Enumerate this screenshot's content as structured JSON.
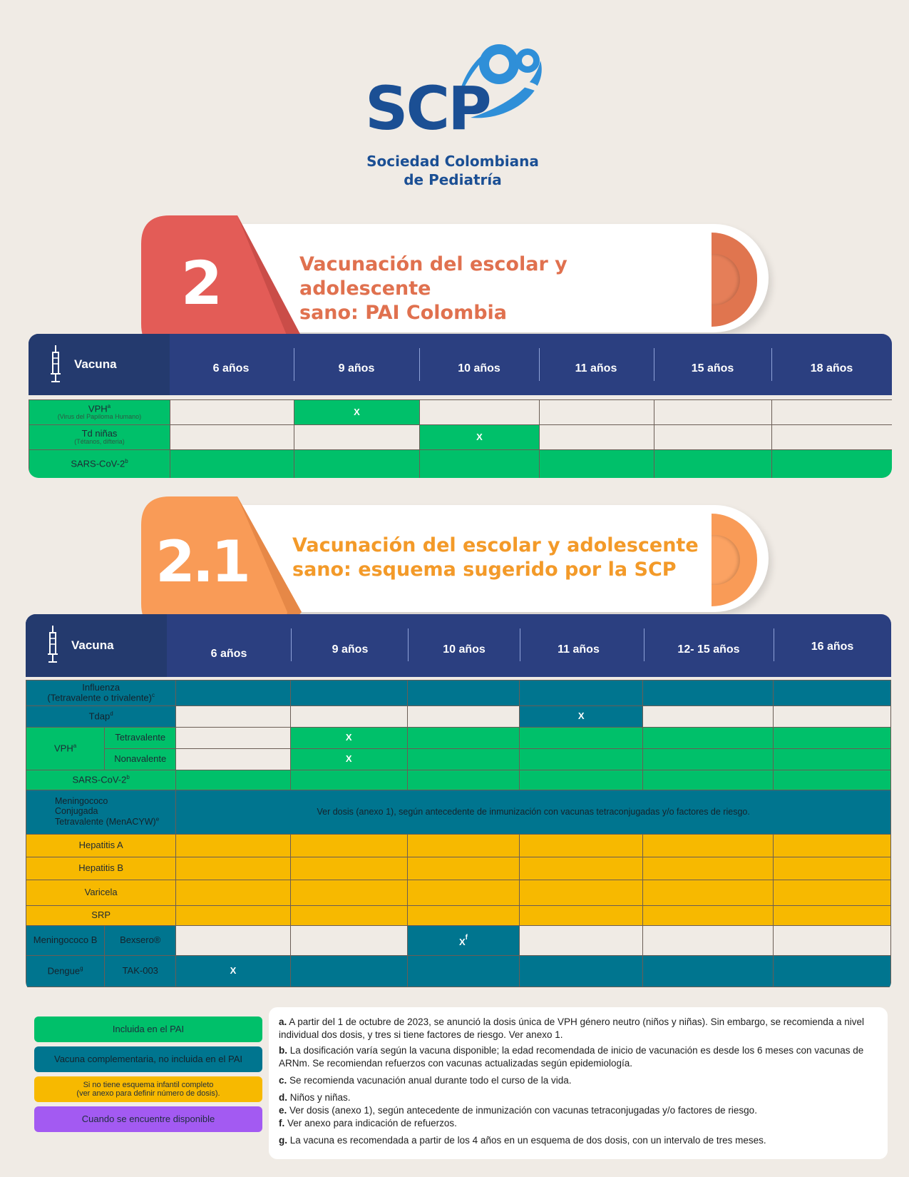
{
  "logo": {
    "abbr": "SCP",
    "org_line1": "Sociedad Colombiana",
    "org_line2": "de Pediatría"
  },
  "colors": {
    "green": "#00c06a",
    "teal": "#00758f",
    "yellow": "#f7b900",
    "purple": "#a35af2",
    "navy": "#2b3f80",
    "red": "#e35c57",
    "orange": "#f99b57"
  },
  "section1": {
    "number": "2",
    "title_line1": "Vacunación del escolar y adolescente",
    "title_line2": "sano: PAI Colombia",
    "header": {
      "vaccine": "Vacuna",
      "ages": [
        "6 años",
        "9 años",
        "10 años",
        "11 años",
        "15 años",
        "18 años"
      ]
    },
    "rows": [
      {
        "name": "VPH",
        "sup": "a",
        "sub": "(Virus del Papiloma Humano)",
        "mark": "X"
      },
      {
        "name": "Td niñas",
        "sub": "(Tétanos, difteria)",
        "mark": "X"
      },
      {
        "name": "SARS-CoV-2",
        "sup": "b"
      }
    ]
  },
  "section2": {
    "number": "2.1",
    "title_line1": "Vacunación del escolar y adolescente",
    "title_line2": "sano: esquema sugerido por la SCP",
    "header": {
      "vaccine": "Vacuna",
      "ages": [
        "6 años",
        "9 años",
        "10 años",
        "11 años",
        "12- 15 años",
        "16 años"
      ]
    },
    "rows": {
      "influenza": {
        "line1": "Influenza",
        "line2": "(Tetravalente o trivalente)",
        "sup": "c"
      },
      "tdap": {
        "name": "Tdap",
        "sup": "d",
        "mark": "X"
      },
      "vph": {
        "name": "VPH",
        "sup": "a",
        "sub1": "Tetravalente",
        "sub2": "Nonavalente",
        "mark": "X"
      },
      "sars": {
        "name": "SARS-CoV-2",
        "sup": "b"
      },
      "mening": {
        "line1": "Meningococo",
        "line2": "Conjugada",
        "line3": "Tetravalente (MenACYW)",
        "sup": "e",
        "note": "Ver dosis (anexo 1), según antecedente de inmunización con vacunas tetraconjugadas y/o factores de riesgo."
      },
      "hepA": "Hepatitis A",
      "hepB": "Hepatitis B",
      "varicela": "Varicela",
      "srp": "SRP",
      "menB": {
        "name": "Meningococo B",
        "product": "Bexsero®",
        "mark": "X",
        "sup": "f"
      },
      "dengue": {
        "name": "Dengue",
        "sup": "g",
        "product": "TAK-003",
        "mark": "X"
      }
    }
  },
  "legend": {
    "included": "Incluida en el PAI",
    "complementary": "Vacuna complementaria, no incluida en el PAI",
    "incomplete_line1": "Si no tiene esquema infantil completo",
    "incomplete_line2": "(ver anexo para definir número de dosis).",
    "available": "Cuando se encuentre disponible"
  },
  "notes": [
    {
      "key": "a.",
      "text": "A partir del 1 de octubre de 2023, se anunció la dosis única de VPH género neutro (niños y niñas). Sin embargo, se recomienda a nivel individual dos dosis, y tres si tiene factores de riesgo. Ver anexo 1."
    },
    {
      "key": "b.",
      "text": "La dosificación varía según la vacuna disponible; la edad recomendada de inicio de vacunación es desde los 6 meses con vacunas de ARNm. Se recomiendan refuerzos con vacunas actualizadas según epidemiología."
    },
    {
      "key": "c.",
      "text": "Se recomienda vacunación anual durante todo el curso de la vida."
    },
    {
      "key": "d.",
      "text": "Niños y niñas."
    },
    {
      "key": "e.",
      "text": "Ver dosis (anexo 1), según antecedente de inmunización con vacunas tetraconjugadas y/o factores de riesgo."
    },
    {
      "key": "f.",
      "text": "Ver anexo para indicación de refuerzos."
    },
    {
      "key": "g.",
      "text": "La vacuna es recomendada a partir de los 4 años en un esquema de dos dosis, con un intervalo de tres meses."
    }
  ]
}
